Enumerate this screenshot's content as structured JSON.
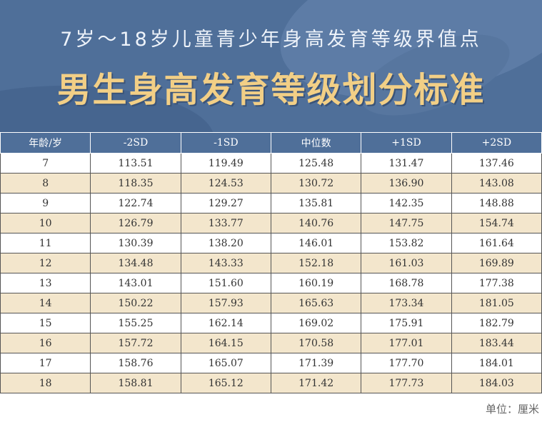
{
  "header": {
    "subtitle": "7岁～18岁儿童青少年身高发育等级界值点",
    "title": "男生身高发育等级划分标准"
  },
  "table": {
    "columns": [
      "年龄/岁",
      "-2SD",
      "-1SD",
      "中位数",
      "+1SD",
      "+2SD"
    ],
    "rows": [
      [
        "7",
        "113.51",
        "119.49",
        "125.48",
        "131.47",
        "137.46"
      ],
      [
        "8",
        "118.35",
        "124.53",
        "130.72",
        "136.90",
        "143.08"
      ],
      [
        "9",
        "122.74",
        "129.27",
        "135.81",
        "142.35",
        "148.88"
      ],
      [
        "10",
        "126.79",
        "133.77",
        "140.76",
        "147.75",
        "154.74"
      ],
      [
        "11",
        "130.39",
        "138.20",
        "146.01",
        "153.82",
        "161.64"
      ],
      [
        "12",
        "134.48",
        "143.33",
        "152.18",
        "161.03",
        "169.89"
      ],
      [
        "13",
        "143.01",
        "151.60",
        "160.19",
        "168.78",
        "177.38"
      ],
      [
        "14",
        "150.22",
        "157.93",
        "165.63",
        "173.34",
        "181.05"
      ],
      [
        "15",
        "155.25",
        "162.14",
        "169.02",
        "175.91",
        "182.79"
      ],
      [
        "16",
        "157.72",
        "164.15",
        "170.58",
        "177.01",
        "183.44"
      ],
      [
        "17",
        "158.76",
        "165.07",
        "171.39",
        "177.70",
        "184.01"
      ],
      [
        "18",
        "158.81",
        "165.12",
        "171.42",
        "177.73",
        "184.03"
      ]
    ]
  },
  "footer": {
    "unit": "单位：厘米"
  },
  "colors": {
    "banner": "#4f6f99",
    "title": "#f2cf86",
    "row_alt": "#f3e6cc"
  }
}
